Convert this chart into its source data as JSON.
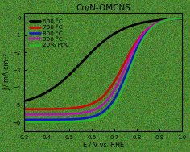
{
  "title": "Co/N-OMCNS",
  "xlabel": "E / V vs. RHE",
  "ylabel": "J / mA cm⁻²",
  "xlim": [
    0.3,
    1.0
  ],
  "ylim": [
    -6.5,
    0.3
  ],
  "bg_color": "#5a9a40",
  "plot_area_color": "#4a8530",
  "curves": [
    {
      "label": "600 °C",
      "color": "#000000",
      "linewidth": 2.0,
      "halfwave": 0.555,
      "limit": -5.1,
      "steepness": 10.5
    },
    {
      "label": "700 °C",
      "color": "#dd0000",
      "linewidth": 1.8,
      "halfwave": 0.745,
      "limit": -5.25,
      "steepness": 19
    },
    {
      "label": "800 °C",
      "color": "#1111dd",
      "linewidth": 1.8,
      "halfwave": 0.762,
      "limit": -5.85,
      "steepness": 22
    },
    {
      "label": "900 °C",
      "color": "#cc00cc",
      "linewidth": 1.6,
      "halfwave": 0.752,
      "limit": -5.55,
      "steepness": 21
    },
    {
      "label": "20% Pt/C",
      "color": "#22bb22",
      "linewidth": 1.8,
      "halfwave": 0.77,
      "limit": -5.98,
      "steepness": 23
    }
  ],
  "legend_fontsize": 5.2,
  "title_fontsize": 7.5,
  "axis_fontsize": 5.8,
  "tick_fontsize": 5.0,
  "axis_color": "#000000",
  "text_color": "#000000",
  "label_color": "#000000"
}
